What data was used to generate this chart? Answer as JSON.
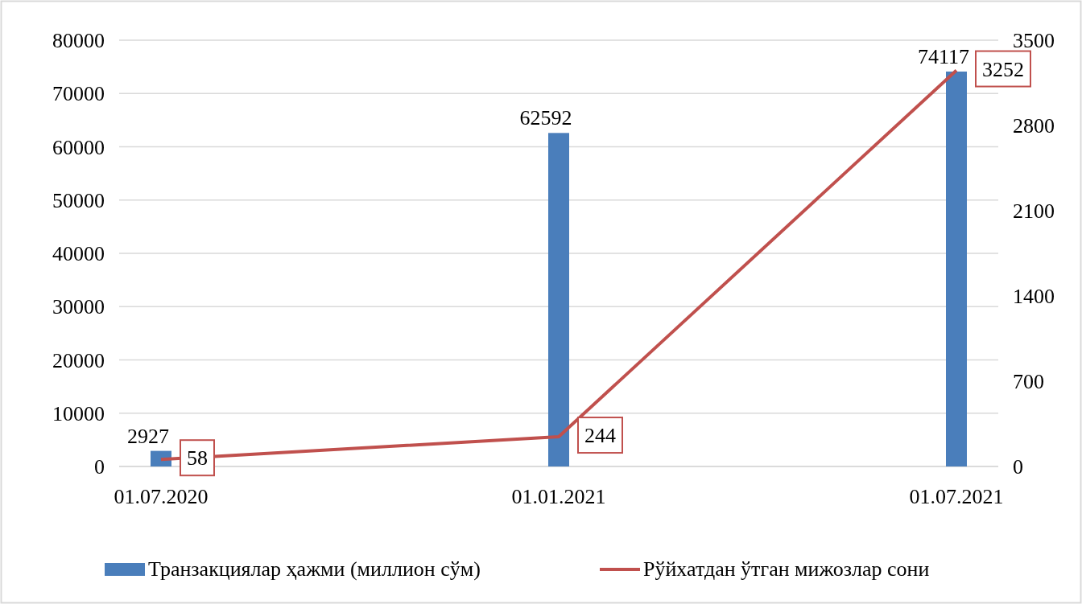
{
  "chart_data": {
    "type": "bar",
    "categories": [
      "01.07.2020",
      "01.01.2021",
      "01.07.2021"
    ],
    "series": [
      {
        "name": "Транзакциялар ҳажми (миллион сўм)",
        "color": "#4a7ebb",
        "values": [
          2927,
          62592,
          74117
        ]
      },
      {
        "name": "Рўйхатдан ўтган мижозлар сони",
        "type": "line",
        "axis": "y2",
        "color": "#c0504d",
        "values": [
          58,
          244,
          3252
        ]
      }
    ],
    "ylim": [
      0,
      80000
    ],
    "yticks": [
      0,
      10000,
      20000,
      30000,
      40000,
      50000,
      60000,
      70000,
      80000
    ],
    "y2lim": [
      0,
      3500
    ],
    "y2ticks": [
      0,
      700,
      1400,
      2100,
      2800,
      3500
    ],
    "grid": "y",
    "legend": "bottom",
    "data_labels": true,
    "marker": "none"
  }
}
